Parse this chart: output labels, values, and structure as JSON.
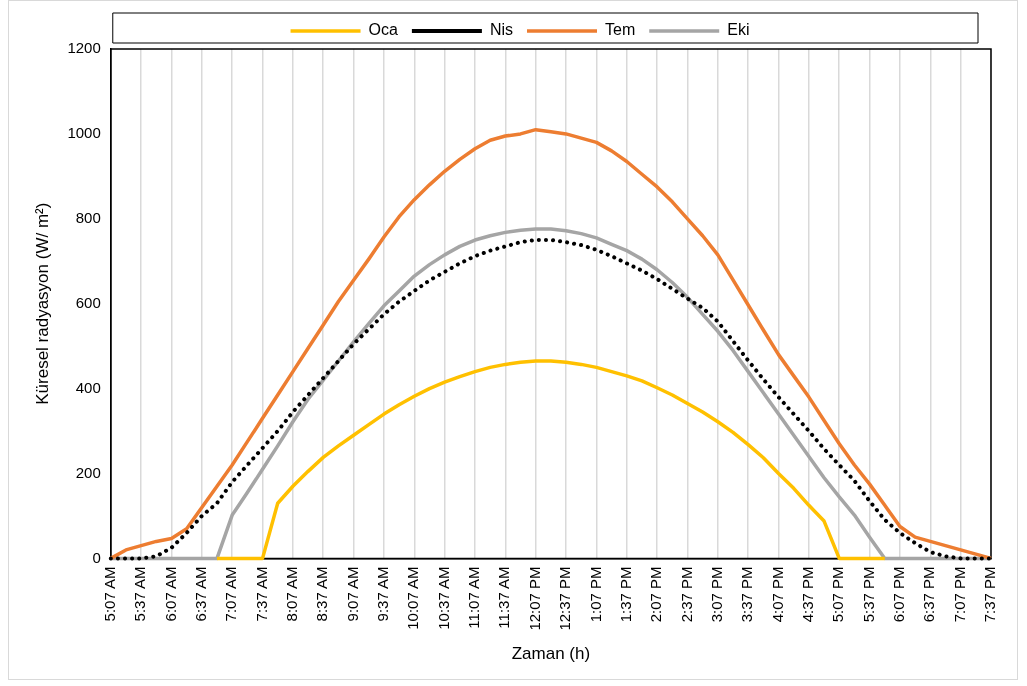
{
  "chart_data": {
    "type": "line",
    "xlabel": "Zaman (h)",
    "ylabel": "Küresel radyasyon (W/ m²)",
    "categories": [
      "5:07 AM",
      null,
      "5:37 AM",
      null,
      "6:07 AM",
      null,
      "6:37 AM",
      null,
      "7:07 AM",
      null,
      "7:37 AM",
      null,
      "8:07 AM",
      null,
      "8:37 AM",
      null,
      "9:07 AM",
      null,
      "9:37 AM",
      null,
      "10:07 AM",
      null,
      "10:37 AM",
      null,
      "11:07 AM",
      null,
      "11:37 AM",
      null,
      "12:07 PM",
      null,
      "12:37 PM",
      null,
      "1:07 PM",
      null,
      "1:37 PM",
      null,
      "2:07 PM",
      null,
      "2:37 PM",
      null,
      "3:07 PM",
      null,
      "3:37 PM",
      null,
      "4:07 PM",
      null,
      "4:37 PM",
      null,
      "5:07 PM",
      null,
      "5:37 PM",
      null,
      "6:07 PM",
      null,
      "6:37 PM",
      null,
      "7:07 PM",
      null,
      "7:37 PM"
    ],
    "series": [
      {
        "name": "Oca",
        "color": "#ffc000",
        "values": [
          null,
          null,
          null,
          null,
          null,
          null,
          null,
          0,
          0,
          0,
          0,
          130,
          170,
          205,
          238,
          265,
          290,
          315,
          340,
          362,
          382,
          400,
          415,
          428,
          440,
          450,
          457,
          462,
          465,
          465,
          462,
          457,
          450,
          440,
          430,
          418,
          402,
          385,
          365,
          345,
          322,
          297,
          268,
          237,
          200,
          165,
          125,
          88,
          0,
          0,
          0,
          0,
          null,
          null,
          null,
          null,
          null,
          null,
          null
        ]
      },
      {
        "name": "Nis",
        "color": "#000000",
        "line_style": "dotted",
        "values": [
          0,
          0,
          0,
          5,
          25,
          60,
          100,
          130,
          180,
          220,
          260,
          300,
          345,
          385,
          425,
          465,
          505,
          540,
          575,
          605,
          630,
          655,
          675,
          695,
          712,
          725,
          735,
          745,
          750,
          750,
          745,
          738,
          727,
          712,
          695,
          678,
          658,
          635,
          612,
          590,
          558,
          512,
          466,
          422,
          380,
          340,
          300,
          258,
          220,
          183,
          135,
          91,
          60,
          36,
          15,
          5,
          0,
          0,
          0
        ]
      },
      {
        "name": "Tem",
        "color": "#ed7d31",
        "values": [
          0,
          20,
          30,
          40,
          47,
          70,
          120,
          170,
          220,
          275,
          330,
          385,
          440,
          495,
          550,
          605,
          655,
          705,
          757,
          805,
          845,
          880,
          912,
          940,
          965,
          985,
          995,
          1000,
          1010,
          1005,
          1000,
          990,
          980,
          960,
          935,
          905,
          875,
          840,
          800,
          760,
          715,
          656,
          597,
          538,
          480,
          430,
          380,
          325,
          270,
          220,
          175,
          125,
          75,
          50,
          40,
          30,
          20,
          10,
          0
        ]
      },
      {
        "name": "Eki",
        "color": "#a5a5a5",
        "values": [
          0,
          0,
          0,
          0,
          0,
          0,
          0,
          0,
          102,
          155,
          210,
          265,
          322,
          375,
          420,
          465,
          510,
          553,
          595,
          630,
          665,
          692,
          715,
          735,
          750,
          760,
          768,
          773,
          776,
          776,
          772,
          765,
          755,
          740,
          725,
          705,
          680,
          650,
          615,
          575,
          535,
          490,
          440,
          390,
          340,
          290,
          240,
          190,
          145,
          102,
          50,
          0,
          0,
          0,
          0,
          0,
          0,
          0,
          0
        ]
      }
    ],
    "ylim": [
      0,
      1200
    ],
    "yticks": [
      0,
      200,
      400,
      600,
      800,
      1000,
      1200
    ],
    "grid": "x",
    "legend": "top",
    "marker": "none",
    "line_style": "solid"
  }
}
